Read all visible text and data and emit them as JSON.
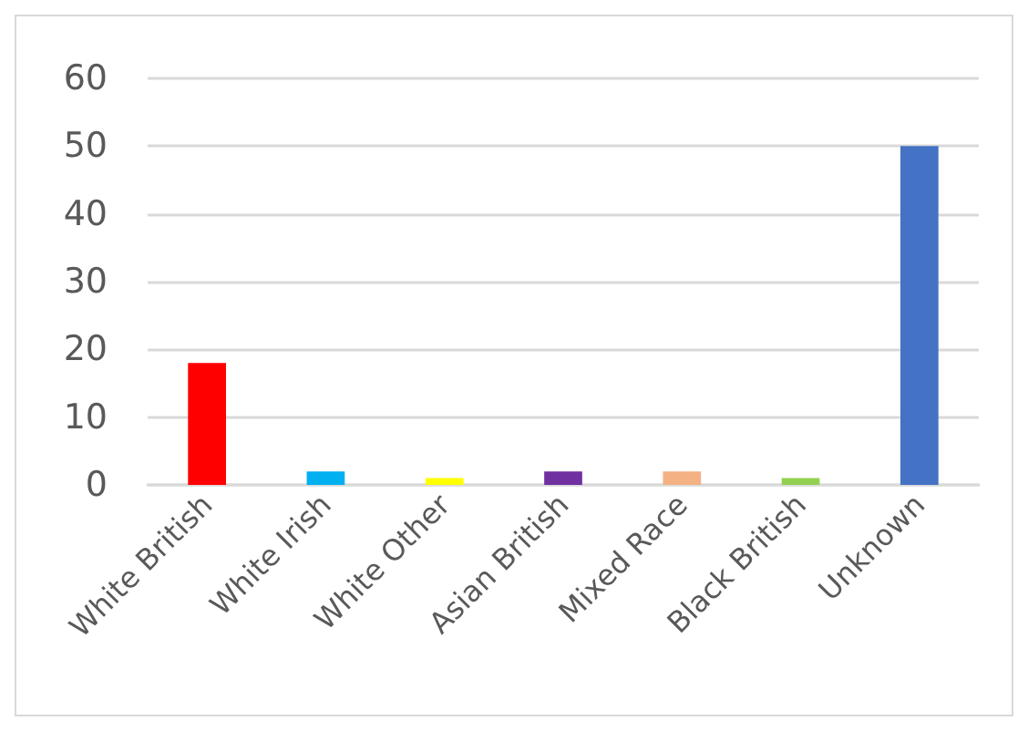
{
  "chart_data": {
    "type": "bar",
    "categories": [
      "White British",
      "White Irish",
      "White Other",
      "Asian British",
      "Mixed Race",
      "Black British",
      "Unknown"
    ],
    "values": [
      18,
      2,
      1,
      2,
      2,
      1,
      50
    ],
    "colors": [
      "#ff0000",
      "#00b0f0",
      "#ffff00",
      "#7030a0",
      "#f4b183",
      "#92d050",
      "#4472c4"
    ],
    "ylim": [
      0,
      60
    ],
    "yticks": [
      0,
      10,
      20,
      30,
      40,
      50,
      60
    ],
    "grid": "y"
  }
}
